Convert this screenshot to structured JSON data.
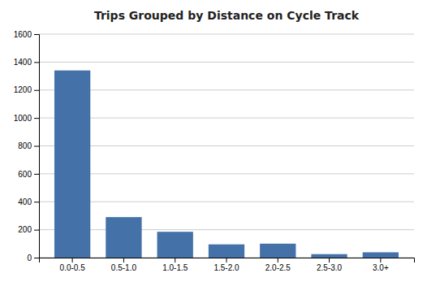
{
  "chart_data": {
    "type": "bar",
    "title": "Trips Grouped by Distance on Cycle Track",
    "categories": [
      "0.0-0.5",
      "0.5-1.0",
      "1.0-1.5",
      "1.5-2.0",
      "2.0-2.5",
      "2.5-3.0",
      "3.0+"
    ],
    "values": [
      1340,
      290,
      185,
      95,
      100,
      25,
      38
    ],
    "color": "#4472A8",
    "ylim": [
      0,
      1600
    ],
    "yticks": [
      0,
      200,
      400,
      600,
      800,
      1000,
      1200,
      1400,
      1600
    ],
    "grid": true
  }
}
